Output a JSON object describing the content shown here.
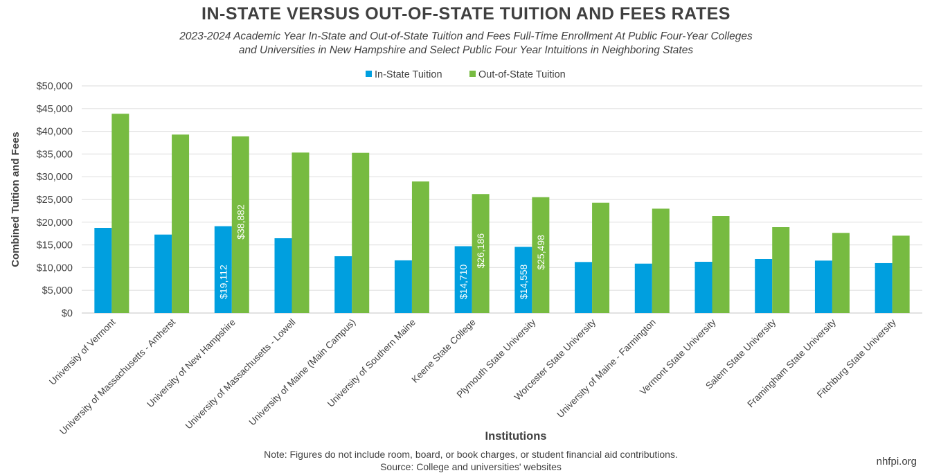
{
  "title": "IN-STATE VERSUS OUT-OF-STATE TUITION AND FEES RATES",
  "subtitle_line1": "2023-2024 Academic Year In-State and Out-of-State Tuition and Fees Full-Time Enrollment At Public Four-Year Colleges",
  "subtitle_line2": "and Universities in New Hampshire and Select Public Four Year Intuitions in Neighboring States",
  "note_line1": "Note: Figures do not include room, board, or book charges, or student financial aid contributions.",
  "note_line2": "Source: College and universities' websites",
  "brand": "nhfpi.org",
  "chart_data": {
    "type": "bar",
    "title": "IN-STATE VERSUS OUT-OF-STATE TUITION AND FEES RATES",
    "xlabel": "Institutions",
    "ylabel": "Combined Tuition and Fees",
    "ylim": [
      0,
      50000
    ],
    "yticks": [
      0,
      5000,
      10000,
      15000,
      20000,
      25000,
      30000,
      35000,
      40000,
      45000,
      50000
    ],
    "ytick_labels": [
      "$0",
      "$5,000",
      "$10,000",
      "$15,000",
      "$20,000",
      "$25,000",
      "$30,000",
      "$35,000",
      "$40,000",
      "$45,000",
      "$50,000"
    ],
    "grid": true,
    "legend_position": "top",
    "categories": [
      "University of Vermont",
      "University of Massachusetts - Amherst",
      "University of New Hampshire",
      "University of Massachusetts - Lowell",
      "University of Maine (Main Campus)",
      "University of Southern Maine",
      "Keene State College",
      "Plymouth State University",
      "Worcester State University",
      "University of Maine - Farmington",
      "Vermont State University",
      "Salem State University",
      "Framingham State University",
      "Fitchburg State University"
    ],
    "series": [
      {
        "name": "In-State Tuition",
        "color": "#009fdf",
        "values": [
          18750,
          17270,
          19112,
          16460,
          12500,
          11590,
          14710,
          14558,
          11230,
          10870,
          11280,
          11890,
          11540,
          10980
        ],
        "data_labels": [
          "",
          "",
          "$19,112",
          "",
          "",
          "",
          "$14,710",
          "$14,558",
          "",
          "",
          "",
          "",
          "",
          ""
        ]
      },
      {
        "name": "Out-of-State Tuition",
        "color": "#77bb41",
        "values": [
          43860,
          39280,
          38882,
          35320,
          35260,
          28960,
          26186,
          25498,
          24280,
          22970,
          21340,
          18900,
          17640,
          17030
        ],
        "data_labels": [
          "",
          "",
          "$38,882",
          "",
          "",
          "",
          "$26,186",
          "$25,498",
          "",
          "",
          "",
          "",
          "",
          ""
        ]
      }
    ]
  }
}
